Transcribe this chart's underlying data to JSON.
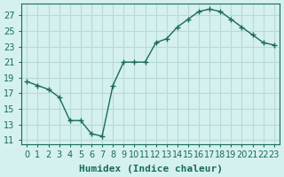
{
  "x": [
    0,
    1,
    2,
    3,
    4,
    5,
    6,
    7,
    8,
    9,
    10,
    11,
    12,
    13,
    14,
    15,
    16,
    17,
    18,
    19,
    20,
    21,
    22,
    23
  ],
  "y": [
    18.5,
    18.0,
    17.5,
    16.5,
    13.5,
    13.5,
    11.8,
    11.5,
    18.0,
    21.0,
    21.0,
    21.0,
    23.5,
    24.0,
    25.5,
    26.5,
    27.5,
    27.8,
    27.5,
    26.5,
    25.5,
    24.5,
    23.5,
    23.2
  ],
  "line_color": "#1a6b5a",
  "marker": "P",
  "marker_size": 3,
  "background_color": "#d4f0ef",
  "grid_color": "#b8dada",
  "xlabel": "Humidex (Indice chaleur)",
  "ylabel": "",
  "xlim": [
    -0.5,
    23.5
  ],
  "ylim": [
    10.5,
    28.5
  ],
  "yticks": [
    11,
    13,
    15,
    17,
    19,
    21,
    23,
    25,
    27
  ],
  "xticks": [
    0,
    1,
    2,
    3,
    4,
    5,
    6,
    7,
    8,
    9,
    10,
    11,
    12,
    13,
    14,
    15,
    16,
    17,
    18,
    19,
    20,
    21,
    22,
    23
  ],
  "tick_color": "#1a6b5a",
  "xlabel_fontsize": 8,
  "tick_fontsize": 7
}
